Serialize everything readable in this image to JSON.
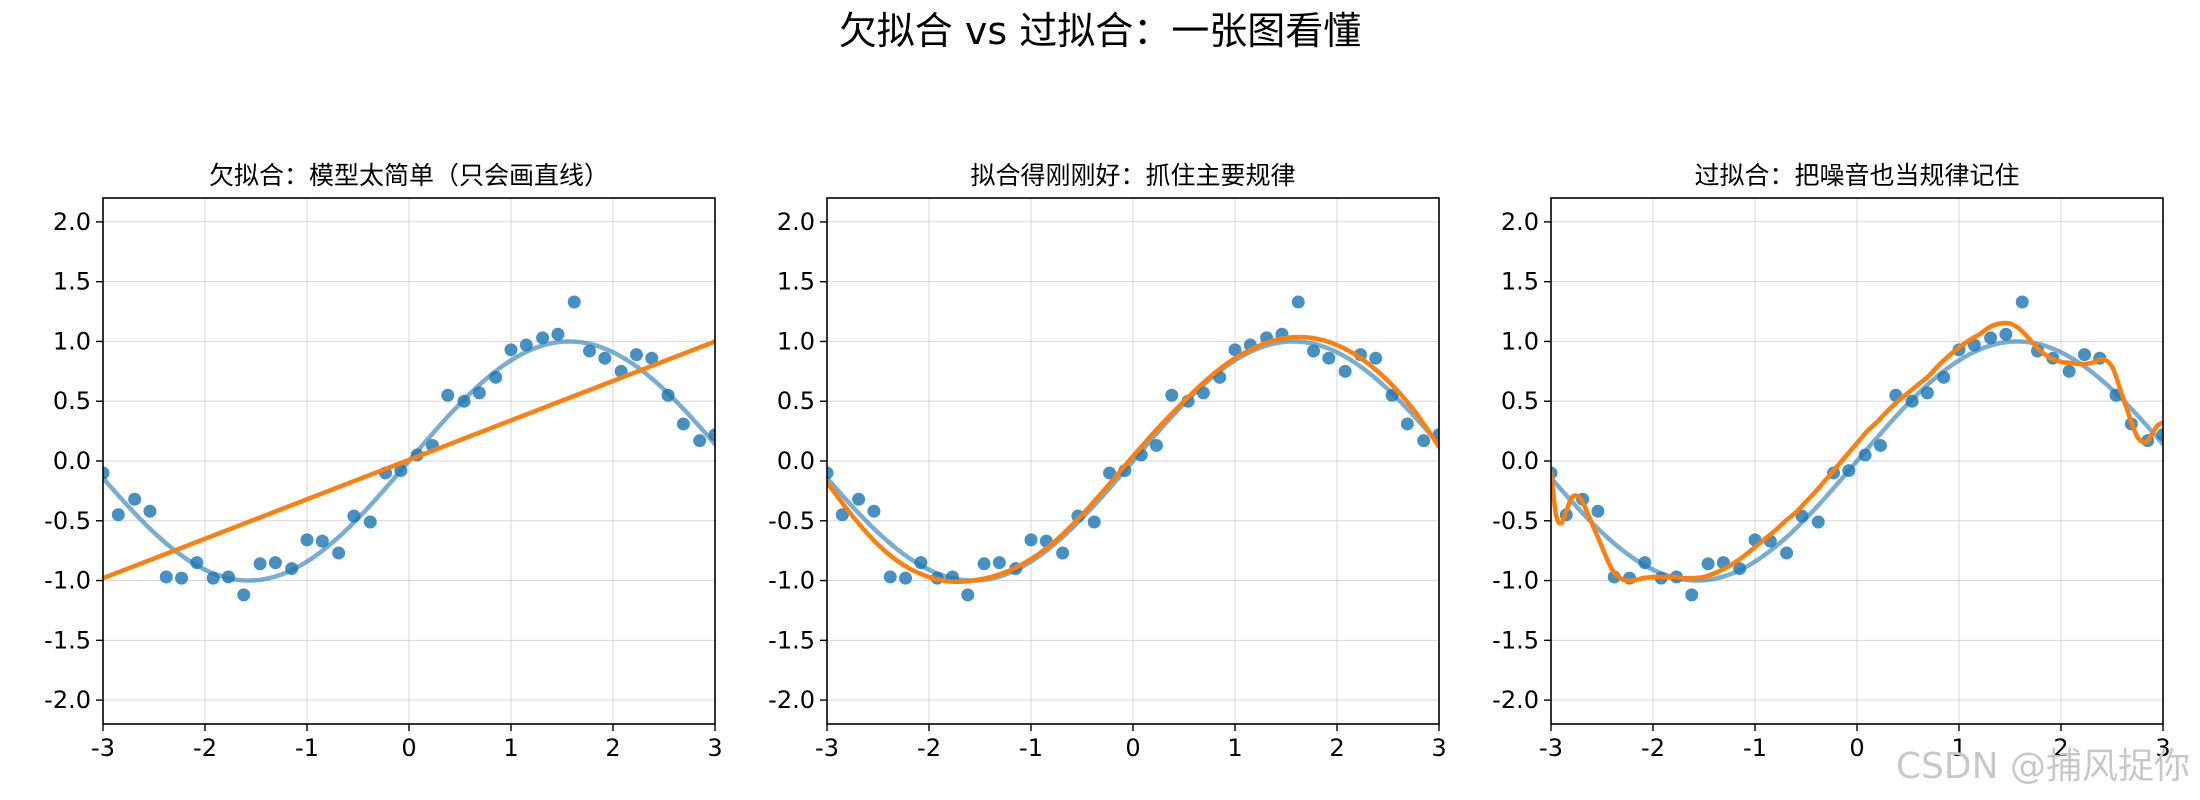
{
  "figure": {
    "title": "欠拟合 vs 过拟合：一张图看懂",
    "watermark": "CSDN @捕风捉你"
  },
  "colors": {
    "points": "#1f77b4",
    "true_curve": "#1f77b4",
    "fit_curve": "#ff7f0e"
  },
  "chart_data": [
    {
      "type": "scatter",
      "title": "欠拟合：模型太简单（只会画直线）",
      "xlim": [
        -3,
        3
      ],
      "ylim": [
        -2.2,
        2.2
      ],
      "xticks": [
        "-3",
        "-2",
        "-1",
        "0",
        "1",
        "2",
        "3"
      ],
      "yticks": [
        "2.0",
        "1.5",
        "1.0",
        "0.5",
        "0.0",
        "-0.5",
        "-1.0",
        "-1.5",
        "-2.0"
      ],
      "grid": true,
      "series": [
        {
          "role": "data",
          "x": [
            -3.0,
            -2.85,
            -2.69,
            -2.54,
            -2.38,
            -2.23,
            -2.08,
            -1.92,
            -1.77,
            -1.62,
            -1.46,
            -1.31,
            -1.15,
            -1.0,
            -0.85,
            -0.69,
            -0.54,
            -0.38,
            -0.23,
            -0.08,
            0.08,
            0.23,
            0.38,
            0.54,
            0.69,
            0.85,
            1.0,
            1.15,
            1.31,
            1.46,
            1.62,
            1.77,
            1.92,
            2.08,
            2.23,
            2.38,
            2.54,
            2.69,
            2.85,
            3.0
          ],
          "y": [
            -0.1,
            -0.45,
            -0.32,
            -0.42,
            -0.97,
            -0.98,
            -0.85,
            -0.98,
            -0.97,
            -1.12,
            -0.86,
            -0.85,
            -0.9,
            -0.66,
            -0.67,
            -0.77,
            -0.46,
            -0.51,
            -0.1,
            -0.08,
            0.05,
            0.13,
            0.55,
            0.5,
            0.57,
            0.7,
            0.93,
            0.97,
            1.03,
            1.06,
            1.33,
            0.92,
            0.86,
            0.75,
            0.89,
            0.86,
            0.55,
            0.31,
            0.17,
            0.22
          ]
        },
        {
          "role": "true",
          "function": "sin",
          "x_range": [
            -3,
            3
          ]
        },
        {
          "role": "fit",
          "model": "linear",
          "x": [
            -3,
            3
          ],
          "y": [
            -0.98,
            1.0
          ]
        }
      ]
    },
    {
      "type": "scatter",
      "title": "拟合得刚刚好：抓住主要规律",
      "xlim": [
        -3,
        3
      ],
      "ylim": [
        -2.2,
        2.2
      ],
      "xticks": [
        "-3",
        "-2",
        "-1",
        "0",
        "1",
        "2",
        "3"
      ],
      "yticks": [
        "2.0",
        "1.5",
        "1.0",
        "0.5",
        "0.0",
        "-0.5",
        "-1.0",
        "-1.5",
        "-2.0"
      ],
      "grid": true,
      "series": [
        {
          "role": "data",
          "x": [
            -3.0,
            -2.85,
            -2.69,
            -2.54,
            -2.38,
            -2.23,
            -2.08,
            -1.92,
            -1.77,
            -1.62,
            -1.46,
            -1.31,
            -1.15,
            -1.0,
            -0.85,
            -0.69,
            -0.54,
            -0.38,
            -0.23,
            -0.08,
            0.08,
            0.23,
            0.38,
            0.54,
            0.69,
            0.85,
            1.0,
            1.15,
            1.31,
            1.46,
            1.62,
            1.77,
            1.92,
            2.08,
            2.23,
            2.38,
            2.54,
            2.69,
            2.85,
            3.0
          ],
          "y": [
            -0.1,
            -0.45,
            -0.32,
            -0.42,
            -0.97,
            -0.98,
            -0.85,
            -0.98,
            -0.97,
            -1.12,
            -0.86,
            -0.85,
            -0.9,
            -0.66,
            -0.67,
            -0.77,
            -0.46,
            -0.51,
            -0.1,
            -0.08,
            0.05,
            0.13,
            0.55,
            0.5,
            0.57,
            0.7,
            0.93,
            0.97,
            1.03,
            1.06,
            1.33,
            0.92,
            0.86,
            0.75,
            0.89,
            0.86,
            0.55,
            0.31,
            0.17,
            0.22
          ]
        },
        {
          "role": "true",
          "function": "sin",
          "x_range": [
            -3,
            3
          ]
        },
        {
          "role": "fit",
          "x": [
            -3.0,
            -2.75,
            -2.5,
            -2.25,
            -2.0,
            -1.75,
            -1.5,
            -1.25,
            -1.0,
            -0.75,
            -0.5,
            -0.25,
            0.0,
            0.25,
            0.5,
            0.75,
            1.0,
            1.25,
            1.5,
            1.75,
            2.0,
            2.25,
            2.5,
            2.75,
            3.0
          ],
          "y": [
            -0.18,
            -0.46,
            -0.7,
            -0.87,
            -0.97,
            -1.01,
            -0.99,
            -0.93,
            -0.82,
            -0.66,
            -0.45,
            -0.21,
            0.04,
            0.28,
            0.5,
            0.7,
            0.86,
            0.97,
            1.03,
            1.03,
            0.97,
            0.85,
            0.67,
            0.43,
            0.12
          ]
        }
      ]
    },
    {
      "type": "scatter",
      "title": "过拟合：把噪音也当规律记住",
      "xlim": [
        -3,
        3
      ],
      "ylim": [
        -2.2,
        2.2
      ],
      "xticks": [
        "-3",
        "-2",
        "-1",
        "0",
        "1",
        "2",
        "3"
      ],
      "yticks": [
        "2.0",
        "1.5",
        "1.0",
        "0.5",
        "0.0",
        "-0.5",
        "-1.0",
        "-1.5",
        "-2.0"
      ],
      "grid": true,
      "series": [
        {
          "role": "data",
          "x": [
            -3.0,
            -2.85,
            -2.69,
            -2.54,
            -2.38,
            -2.23,
            -2.08,
            -1.92,
            -1.77,
            -1.62,
            -1.46,
            -1.31,
            -1.15,
            -1.0,
            -0.85,
            -0.69,
            -0.54,
            -0.38,
            -0.23,
            -0.08,
            0.08,
            0.23,
            0.38,
            0.54,
            0.69,
            0.85,
            1.0,
            1.15,
            1.31,
            1.46,
            1.62,
            1.77,
            1.92,
            2.08,
            2.23,
            2.38,
            2.54,
            2.69,
            2.85,
            3.0
          ],
          "y": [
            -0.1,
            -0.45,
            -0.32,
            -0.42,
            -0.97,
            -0.98,
            -0.85,
            -0.98,
            -0.97,
            -1.12,
            -0.86,
            -0.85,
            -0.9,
            -0.66,
            -0.67,
            -0.77,
            -0.46,
            -0.51,
            -0.1,
            -0.08,
            0.05,
            0.13,
            0.55,
            0.5,
            0.57,
            0.7,
            0.93,
            0.97,
            1.03,
            1.06,
            1.33,
            0.92,
            0.86,
            0.75,
            0.89,
            0.86,
            0.55,
            0.31,
            0.17,
            0.22
          ]
        },
        {
          "role": "true",
          "function": "sin",
          "x_range": [
            -3,
            3
          ]
        },
        {
          "role": "fit",
          "x": [
            -3.0,
            -2.95,
            -2.9,
            -2.85,
            -2.8,
            -2.75,
            -2.7,
            -2.65,
            -2.6,
            -2.5,
            -2.4,
            -2.3,
            -2.2,
            -2.1,
            -2.0,
            -1.9,
            -1.8,
            -1.7,
            -1.6,
            -1.5,
            -1.4,
            -1.3,
            -1.2,
            -1.1,
            -1.0,
            -0.9,
            -0.8,
            -0.7,
            -0.6,
            -0.5,
            -0.4,
            -0.3,
            -0.2,
            -0.1,
            0.0,
            0.1,
            0.2,
            0.3,
            0.4,
            0.5,
            0.6,
            0.7,
            0.8,
            0.9,
            1.0,
            1.1,
            1.2,
            1.3,
            1.4,
            1.5,
            1.6,
            1.7,
            1.8,
            1.9,
            2.0,
            2.1,
            2.2,
            2.3,
            2.4,
            2.5,
            2.6,
            2.7,
            2.75,
            2.8,
            2.85,
            2.9,
            2.95,
            3.0
          ],
          "y": [
            -0.1,
            -0.45,
            -0.52,
            -0.42,
            -0.31,
            -0.29,
            -0.33,
            -0.42,
            -0.52,
            -0.72,
            -0.91,
            -0.99,
            -1.0,
            -0.98,
            -0.97,
            -0.97,
            -0.97,
            -0.98,
            -0.98,
            -0.97,
            -0.94,
            -0.9,
            -0.85,
            -0.79,
            -0.72,
            -0.65,
            -0.58,
            -0.5,
            -0.43,
            -0.34,
            -0.25,
            -0.15,
            -0.05,
            0.05,
            0.15,
            0.25,
            0.33,
            0.42,
            0.5,
            0.57,
            0.64,
            0.71,
            0.8,
            0.88,
            0.95,
            1.01,
            1.06,
            1.12,
            1.15,
            1.15,
            1.1,
            1.01,
            0.92,
            0.86,
            0.83,
            0.82,
            0.81,
            0.82,
            0.85,
            0.79,
            0.55,
            0.3,
            0.2,
            0.16,
            0.17,
            0.24,
            0.3,
            0.32
          ]
        }
      ]
    }
  ]
}
